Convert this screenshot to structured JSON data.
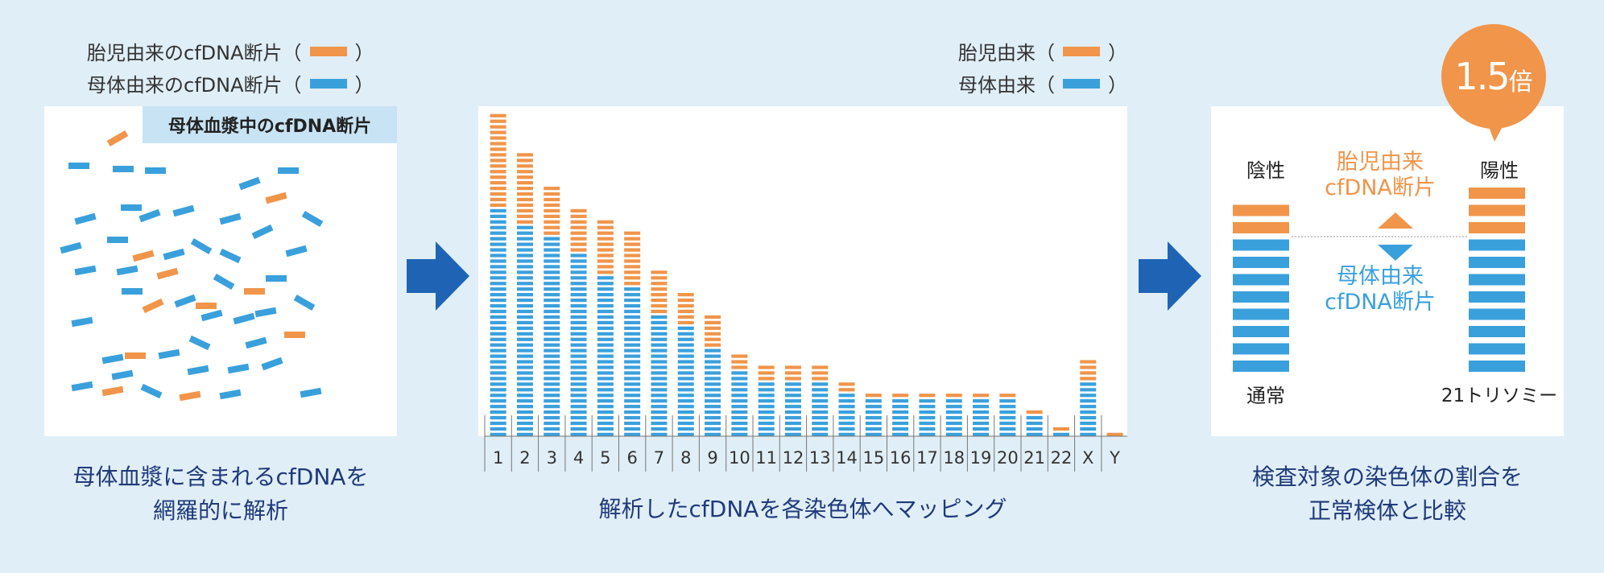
{
  "colors": {
    "fetal": "#f0954a",
    "maternal": "#3aa0dc",
    "background": "#e0eef7",
    "arrow": "#1f64b4",
    "caption": "#1f3a7a",
    "badge": "#f0954a"
  },
  "legend_left": {
    "fetal_label": "胎児由来のcfDNA断片",
    "maternal_label": "母体由来のcfDNA断片",
    "open_paren": "（",
    "close_paren": "）"
  },
  "legend_mid": {
    "fetal_label": "胎児由来",
    "maternal_label": "母体由来",
    "open_paren": "（",
    "close_paren": "）"
  },
  "panel_left": {
    "tag": "母体血漿中のcfDNA断片",
    "caption_line1": "母体血漿に含まれるcfDNAを",
    "caption_line2": "網羅的に解析"
  },
  "panel_mid": {
    "caption": "解析したcfDNAを各染色体へマッピング"
  },
  "chart_data": {
    "type": "bar",
    "title": "",
    "xlabel": "",
    "ylabel": "",
    "categories": [
      "1",
      "2",
      "3",
      "4",
      "5",
      "6",
      "7",
      "8",
      "9",
      "10",
      "11",
      "12",
      "13",
      "14",
      "15",
      "16",
      "17",
      "18",
      "19",
      "20",
      "21",
      "22",
      "X",
      "Y"
    ],
    "series": [
      {
        "name": "母体由来",
        "values": [
          41,
          38,
          36,
          33,
          29,
          27,
          22,
          20,
          16,
          12,
          10,
          10,
          10,
          8,
          7,
          7,
          7,
          7,
          7,
          7,
          4,
          1,
          10,
          0
        ]
      },
      {
        "name": "胎児由来",
        "values": [
          17,
          13,
          9,
          8,
          10,
          10,
          8,
          6,
          6,
          3,
          3,
          3,
          3,
          2,
          1,
          1,
          1,
          1,
          1,
          1,
          1,
          1,
          4,
          1
        ]
      }
    ],
    "ylim": [
      0,
      60
    ],
    "grid": false,
    "legend": "top-right"
  },
  "panel_right": {
    "negative_label": "陰性",
    "positive_label": "陽性",
    "fetal_text_line1": "胎児由来",
    "fetal_text_line2": "cfDNA断片",
    "maternal_text_line1": "母体由来",
    "maternal_text_line2": "cfDNA断片",
    "normal_label": "通常",
    "trisomy_label": "21トリソミー",
    "badge_value": "1.5",
    "badge_unit": "倍",
    "negative_fetal_bars": 2,
    "negative_maternal_bars": 8,
    "positive_fetal_bars": 3,
    "positive_maternal_bars": 8,
    "caption_line1": "検査対象の染色体の割合を",
    "caption_line2": "正常検体と比較"
  }
}
